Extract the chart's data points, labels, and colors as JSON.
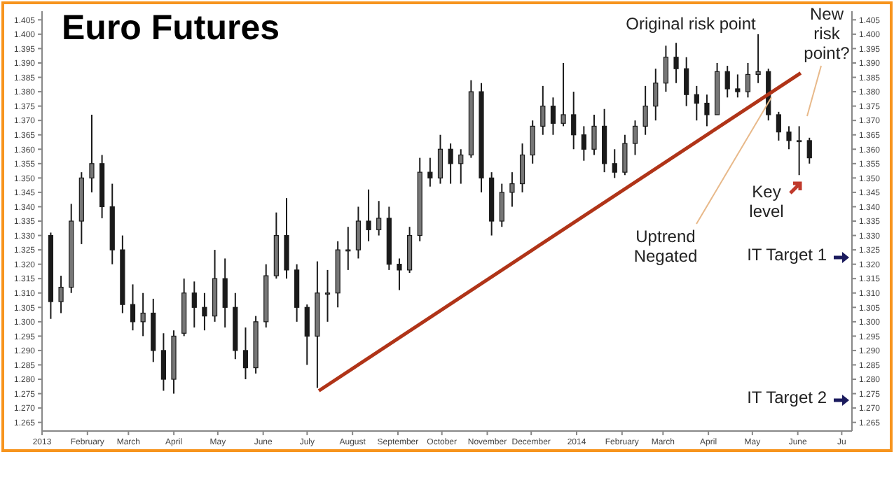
{
  "chart_data": {
    "type": "candlestick",
    "title": "Euro Futures",
    "x": [
      "2013-01-07",
      "2013-01-14",
      "2013-01-21",
      "2013-01-28",
      "2013-02-04",
      "2013-02-11",
      "2013-02-18",
      "2013-02-25",
      "2013-03-04",
      "2013-03-11",
      "2013-03-18",
      "2013-03-25",
      "2013-04-01",
      "2013-04-08",
      "2013-04-15",
      "2013-04-22",
      "2013-04-29",
      "2013-05-06",
      "2013-05-13",
      "2013-05-20",
      "2013-05-27",
      "2013-06-03",
      "2013-06-10",
      "2013-06-17",
      "2013-06-24",
      "2013-07-01",
      "2013-07-08",
      "2013-07-15",
      "2013-07-22",
      "2013-07-29",
      "2013-08-05",
      "2013-08-12",
      "2013-08-19",
      "2013-08-26",
      "2013-09-02",
      "2013-09-09",
      "2013-09-16",
      "2013-09-23",
      "2013-09-30",
      "2013-10-07",
      "2013-10-14",
      "2013-10-21",
      "2013-10-28",
      "2013-11-04",
      "2013-11-11",
      "2013-11-18",
      "2013-11-25",
      "2013-12-02",
      "2013-12-09",
      "2013-12-16",
      "2013-12-23",
      "2013-12-30",
      "2014-01-06",
      "2014-01-13",
      "2014-01-20",
      "2014-01-27",
      "2014-02-03",
      "2014-02-10",
      "2014-02-17",
      "2014-02-24",
      "2014-03-03",
      "2014-03-10",
      "2014-03-17",
      "2014-03-24",
      "2014-03-31",
      "2014-04-07",
      "2014-04-14",
      "2014-04-21",
      "2014-04-28",
      "2014-05-05",
      "2014-05-12",
      "2014-05-19",
      "2014-05-26",
      "2014-06-02",
      "2014-06-09"
    ],
    "ohlc": [
      [
        1.33,
        1.331,
        1.301,
        1.307
      ],
      [
        1.307,
        1.316,
        1.303,
        1.312
      ],
      [
        1.312,
        1.341,
        1.31,
        1.335
      ],
      [
        1.335,
        1.352,
        1.327,
        1.35
      ],
      [
        1.35,
        1.372,
        1.345,
        1.355
      ],
      [
        1.355,
        1.358,
        1.336,
        1.34
      ],
      [
        1.34,
        1.348,
        1.32,
        1.325
      ],
      [
        1.325,
        1.33,
        1.303,
        1.306
      ],
      [
        1.306,
        1.313,
        1.297,
        1.3
      ],
      [
        1.3,
        1.31,
        1.295,
        1.303
      ],
      [
        1.303,
        1.308,
        1.286,
        1.29
      ],
      [
        1.29,
        1.296,
        1.276,
        1.28
      ],
      [
        1.28,
        1.297,
        1.275,
        1.295
      ],
      [
        1.296,
        1.315,
        1.295,
        1.31
      ],
      [
        1.31,
        1.314,
        1.298,
        1.305
      ],
      [
        1.305,
        1.31,
        1.297,
        1.302
      ],
      [
        1.302,
        1.325,
        1.3,
        1.315
      ],
      [
        1.315,
        1.322,
        1.298,
        1.305
      ],
      [
        1.305,
        1.31,
        1.287,
        1.29
      ],
      [
        1.29,
        1.298,
        1.28,
        1.284
      ],
      [
        1.284,
        1.302,
        1.282,
        1.3
      ],
      [
        1.3,
        1.32,
        1.298,
        1.316
      ],
      [
        1.316,
        1.338,
        1.315,
        1.33
      ],
      [
        1.33,
        1.343,
        1.315,
        1.318
      ],
      [
        1.318,
        1.32,
        1.3,
        1.305
      ],
      [
        1.305,
        1.306,
        1.285,
        1.295
      ],
      [
        1.295,
        1.321,
        1.277,
        1.31
      ],
      [
        1.31,
        1.318,
        1.3,
        1.31
      ],
      [
        1.31,
        1.328,
        1.305,
        1.325
      ],
      [
        1.325,
        1.333,
        1.318,
        1.325
      ],
      [
        1.325,
        1.34,
        1.322,
        1.335
      ],
      [
        1.335,
        1.346,
        1.328,
        1.332
      ],
      [
        1.332,
        1.342,
        1.33,
        1.336
      ],
      [
        1.336,
        1.34,
        1.318,
        1.32
      ],
      [
        1.32,
        1.322,
        1.311,
        1.318
      ],
      [
        1.318,
        1.333,
        1.317,
        1.33
      ],
      [
        1.33,
        1.357,
        1.328,
        1.352
      ],
      [
        1.352,
        1.357,
        1.347,
        1.35
      ],
      [
        1.35,
        1.365,
        1.348,
        1.36
      ],
      [
        1.36,
        1.362,
        1.348,
        1.355
      ],
      [
        1.355,
        1.36,
        1.348,
        1.358
      ],
      [
        1.358,
        1.384,
        1.357,
        1.38
      ],
      [
        1.38,
        1.383,
        1.345,
        1.35
      ],
      [
        1.35,
        1.352,
        1.33,
        1.335
      ],
      [
        1.335,
        1.348,
        1.333,
        1.345
      ],
      [
        1.345,
        1.352,
        1.34,
        1.348
      ],
      [
        1.348,
        1.362,
        1.345,
        1.358
      ],
      [
        1.358,
        1.37,
        1.355,
        1.368
      ],
      [
        1.368,
        1.382,
        1.365,
        1.375
      ],
      [
        1.375,
        1.378,
        1.365,
        1.369
      ],
      [
        1.369,
        1.39,
        1.368,
        1.372
      ],
      [
        1.372,
        1.38,
        1.36,
        1.365
      ],
      [
        1.365,
        1.368,
        1.356,
        1.36
      ],
      [
        1.36,
        1.372,
        1.358,
        1.368
      ],
      [
        1.368,
        1.374,
        1.352,
        1.355
      ],
      [
        1.355,
        1.36,
        1.35,
        1.352
      ],
      [
        1.352,
        1.365,
        1.351,
        1.362
      ],
      [
        1.362,
        1.37,
        1.358,
        1.368
      ],
      [
        1.368,
        1.382,
        1.365,
        1.375
      ],
      [
        1.375,
        1.388,
        1.37,
        1.383
      ],
      [
        1.383,
        1.396,
        1.38,
        1.392
      ],
      [
        1.392,
        1.397,
        1.383,
        1.388
      ],
      [
        1.388,
        1.392,
        1.375,
        1.379
      ],
      [
        1.379,
        1.382,
        1.37,
        1.376
      ],
      [
        1.376,
        1.379,
        1.368,
        1.372
      ],
      [
        1.372,
        1.39,
        1.372,
        1.387
      ],
      [
        1.387,
        1.389,
        1.378,
        1.381
      ],
      [
        1.381,
        1.386,
        1.378,
        1.38
      ],
      [
        1.38,
        1.39,
        1.378,
        1.386
      ],
      [
        1.386,
        1.4,
        1.383,
        1.387
      ],
      [
        1.387,
        1.388,
        1.37,
        1.372
      ],
      [
        1.372,
        1.373,
        1.363,
        1.366
      ],
      [
        1.366,
        1.368,
        1.36,
        1.363
      ],
      [
        1.363,
        1.368,
        1.351,
        1.363
      ],
      [
        1.363,
        1.364,
        1.355,
        1.357
      ]
    ],
    "series": [
      {
        "type": "line",
        "color": "#b03418",
        "x": [
          "2013-07-09",
          "2014-06-03"
        ],
        "values": [
          1.276,
          1.3865
        ]
      }
    ],
    "xlim": [
      "2013-01-01",
      "2014-07-08"
    ],
    "xticks": [
      {
        "value": "2013-01-01",
        "label": "2013"
      },
      {
        "value": "2013-02-01",
        "label": "February"
      },
      {
        "value": "2013-03-01",
        "label": "March"
      },
      {
        "value": "2013-04-01",
        "label": "April"
      },
      {
        "value": "2013-05-01",
        "label": "May"
      },
      {
        "value": "2013-06-01",
        "label": "June"
      },
      {
        "value": "2013-07-01",
        "label": "July"
      },
      {
        "value": "2013-08-01",
        "label": "August"
      },
      {
        "value": "2013-09-01",
        "label": "September"
      },
      {
        "value": "2013-10-01",
        "label": "October"
      },
      {
        "value": "2013-11-01",
        "label": "November"
      },
      {
        "value": "2013-12-01",
        "label": "December"
      },
      {
        "value": "2014-01-01",
        "label": "2014"
      },
      {
        "value": "2014-02-01",
        "label": "February"
      },
      {
        "value": "2014-03-01",
        "label": "March"
      },
      {
        "value": "2014-04-01",
        "label": "April"
      },
      {
        "value": "2014-05-01",
        "label": "May"
      },
      {
        "value": "2014-06-01",
        "label": "June"
      },
      {
        "value": "2014-07-01",
        "label": "Ju"
      }
    ],
    "ylim": [
      1.262,
      1.408
    ],
    "yticks": [
      1.265,
      {
        "value": 1.27,
        "label": "1.270"
      },
      1.275,
      {
        "value": 1.28,
        "label": "1.280"
      },
      1.285,
      {
        "value": 1.29,
        "label": "1.290"
      },
      1.295,
      {
        "value": 1.3,
        "label": "1.300"
      },
      1.305,
      {
        "value": 1.31,
        "label": "1.310"
      },
      1.315,
      {
        "value": 1.32,
        "label": "1.320"
      },
      1.325,
      {
        "value": 1.33,
        "label": "1.330"
      },
      1.335,
      {
        "value": 1.34,
        "label": "1.340"
      },
      1.345,
      {
        "value": 1.35,
        "label": "1.350"
      },
      1.355,
      {
        "value": 1.36,
        "label": "1.360"
      },
      1.365,
      {
        "value": 1.37,
        "label": "1.370"
      },
      1.375,
      {
        "value": 1.38,
        "label": "1.380"
      },
      1.385,
      {
        "value": 1.39,
        "label": "1.390"
      },
      1.395,
      {
        "value": 1.4,
        "label": "1.400"
      },
      1.405
    ],
    "y2lim": [
      1.262,
      1.408
    ],
    "y2ticks": [
      1.265,
      {
        "value": 1.27,
        "label": "1.270"
      },
      1.275,
      {
        "value": 1.28,
        "label": "1.280"
      },
      1.285,
      {
        "value": 1.29,
        "label": "1.290"
      },
      1.295,
      {
        "value": 1.3,
        "label": "1.300"
      },
      1.305,
      {
        "value": 1.31,
        "label": "1.310"
      },
      1.315,
      {
        "value": 1.32,
        "label": "1.320"
      },
      1.325,
      {
        "value": 1.33,
        "label": "1.330"
      },
      1.335,
      {
        "value": 1.34,
        "label": "1.340"
      },
      1.345,
      {
        "value": 1.35,
        "label": "1.350"
      },
      1.355,
      {
        "value": 1.36,
        "label": "1.360"
      },
      1.365,
      {
        "value": 1.37,
        "label": "1.370"
      },
      1.375,
      {
        "value": 1.38,
        "label": "1.380"
      },
      1.385,
      {
        "value": 1.39,
        "label": "1.390"
      },
      1.395,
      {
        "value": 1.4,
        "label": "1.400"
      },
      1.405
    ],
    "color": "#1a1a1a",
    "grid": false,
    "legend": false,
    "annotations": [
      "Original risk point",
      "New risk point?",
      {
        "text": "Uptrend Negated",
        "x": "2014-05-14",
        "y": 1.378
      },
      "Key level",
      "IT Target 1",
      "IT Target 2"
    ]
  }
}
